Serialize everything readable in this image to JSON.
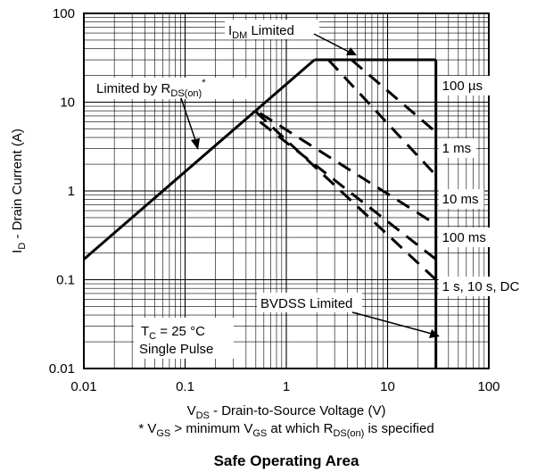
{
  "chart_data": {
    "type": "line",
    "title": "Safe Operating Area",
    "x_scale": "log",
    "y_scale": "log",
    "xlim": [
      0.01,
      100
    ],
    "ylim": [
      0.01,
      100
    ],
    "x_ticks": [
      "0.01",
      "0.1",
      "1",
      "10",
      "100"
    ],
    "y_ticks": [
      "0.01",
      "0.1",
      "1",
      "10",
      "100"
    ],
    "xlabel": {
      "main": "V",
      "sub": "DS",
      "rest": " - Drain-to-Source Voltage (V)"
    },
    "ylabel": {
      "main": "I",
      "sub": "D",
      "rest": " - Drain Current (A)"
    },
    "footnote": {
      "p1": "* V",
      "s1": "GS",
      "p2": " > minimum V",
      "s2": "GS",
      "p3": " at which R",
      "s3": "DS(on)",
      "p4": " is specified"
    },
    "grid": true,
    "annotations": {
      "idm": {
        "main": "I",
        "sub": "DM",
        "rest": " Limited"
      },
      "rds": {
        "main": "Limited by R",
        "sub": "DS(on)",
        "sup": "*"
      },
      "bvdss": "BVDSS Limited",
      "tc": {
        "main": "T",
        "sub": "C",
        "rest": " = 25 °C"
      },
      "pulse": "Single Pulse"
    },
    "series": [
      {
        "name": "Limited by RDS(on)",
        "style": "solid",
        "x": [
          0.01,
          1.9
        ],
        "y": [
          0.17,
          30
        ]
      },
      {
        "name": "IDM Limited",
        "style": "solid",
        "x": [
          1.9,
          30
        ],
        "y": [
          30,
          30
        ]
      },
      {
        "name": "BVDSS Limited",
        "style": "solid",
        "x": [
          30,
          30
        ],
        "y": [
          30,
          0.01
        ]
      },
      {
        "name": "100 µs",
        "style": "dashed",
        "x": [
          4.4,
          30
        ],
        "y": [
          30,
          4.6
        ]
      },
      {
        "name": "1 ms",
        "style": "dashed",
        "x": [
          2.6,
          30
        ],
        "y": [
          30,
          1.5
        ]
      },
      {
        "name": "10 ms",
        "style": "dashed",
        "x": [
          0.55,
          30
        ],
        "y": [
          7.5,
          0.42
        ]
      },
      {
        "name": "100 ms",
        "style": "dashed",
        "x": [
          0.55,
          30
        ],
        "y": [
          6.0,
          0.17
        ]
      },
      {
        "name": "1 s, 10 s, DC",
        "style": "dashed",
        "x": [
          0.5,
          30
        ],
        "y": [
          7.8,
          0.1
        ]
      }
    ],
    "curve_labels": [
      "100 µs",
      "1 ms",
      "10 ms",
      "100 ms",
      "1 s, 10 s, DC"
    ]
  }
}
